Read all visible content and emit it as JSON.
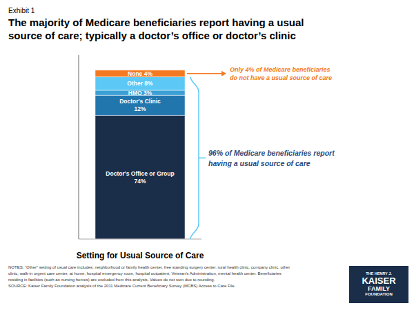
{
  "chart_data": {
    "type": "bar",
    "stacked": true,
    "data_labels": true,
    "tick_labels": false,
    "exhibit_label": "Exhibit 1",
    "title": "The majority of Medicare beneficiaries report having a usual\nsource of care; typically a doctor’s office or doctor’s clinic",
    "categories": [
      null
    ],
    "xlabel": "Setting for Usual Source of Care",
    "ylim": [
      0,
      110
    ],
    "series": [
      {
        "name": "Doctor's Office or Group",
        "values": [
          74
        ],
        "value_labels": [
          "74%"
        ],
        "color": "#1a2e4a"
      },
      {
        "name": "Doctor's Clinic",
        "values": [
          12
        ],
        "value_labels": [
          "12%"
        ],
        "color": "#2176ae"
      },
      {
        "name": "HMO",
        "values": [
          3
        ],
        "value_labels": [
          "3%"
        ],
        "color": "#3aa0d5"
      },
      {
        "name": "Other",
        "values": [
          8
        ],
        "value_labels": [
          "8%"
        ],
        "color": "#5bc8f5"
      },
      {
        "name": "None",
        "values": [
          4
        ],
        "value_labels": [
          "4%"
        ],
        "color": "#f47920"
      }
    ],
    "annotations": [
      {
        "text": "Only 4% of Medicare beneficiaries\ndo not have a usual source of care",
        "color": "#f47920"
      },
      {
        "text": "96% of Medicare beneficiaries report\nhaving a usual source of care",
        "color": "#2c4a7c",
        "bracket_color": "#5bc8f5"
      }
    ],
    "notes": [
      "NOTES: “Other” setting of usual care includes: neighborhood or family health center, free standing surgery center, rural health clinic, company clinic, other",
      "clinic, walk-in urgent care center, at home, hospital emergency room, hospital outpatient, Veteran’s Administration, mental health center. Beneficiaries",
      "residing in facilities (such as nursing homes) are excluded from this analysis.  Values do not sum due to rounding.",
      "SOURCE: Kaiser Family Foundation analysis of the 2011 Medicare Current Beneficiary Survey (MCBS) Access to Care File."
    ],
    "logo": [
      "THE HENRY J.",
      "KAISER",
      "FAMILY",
      "FOUNDATION"
    ]
  }
}
